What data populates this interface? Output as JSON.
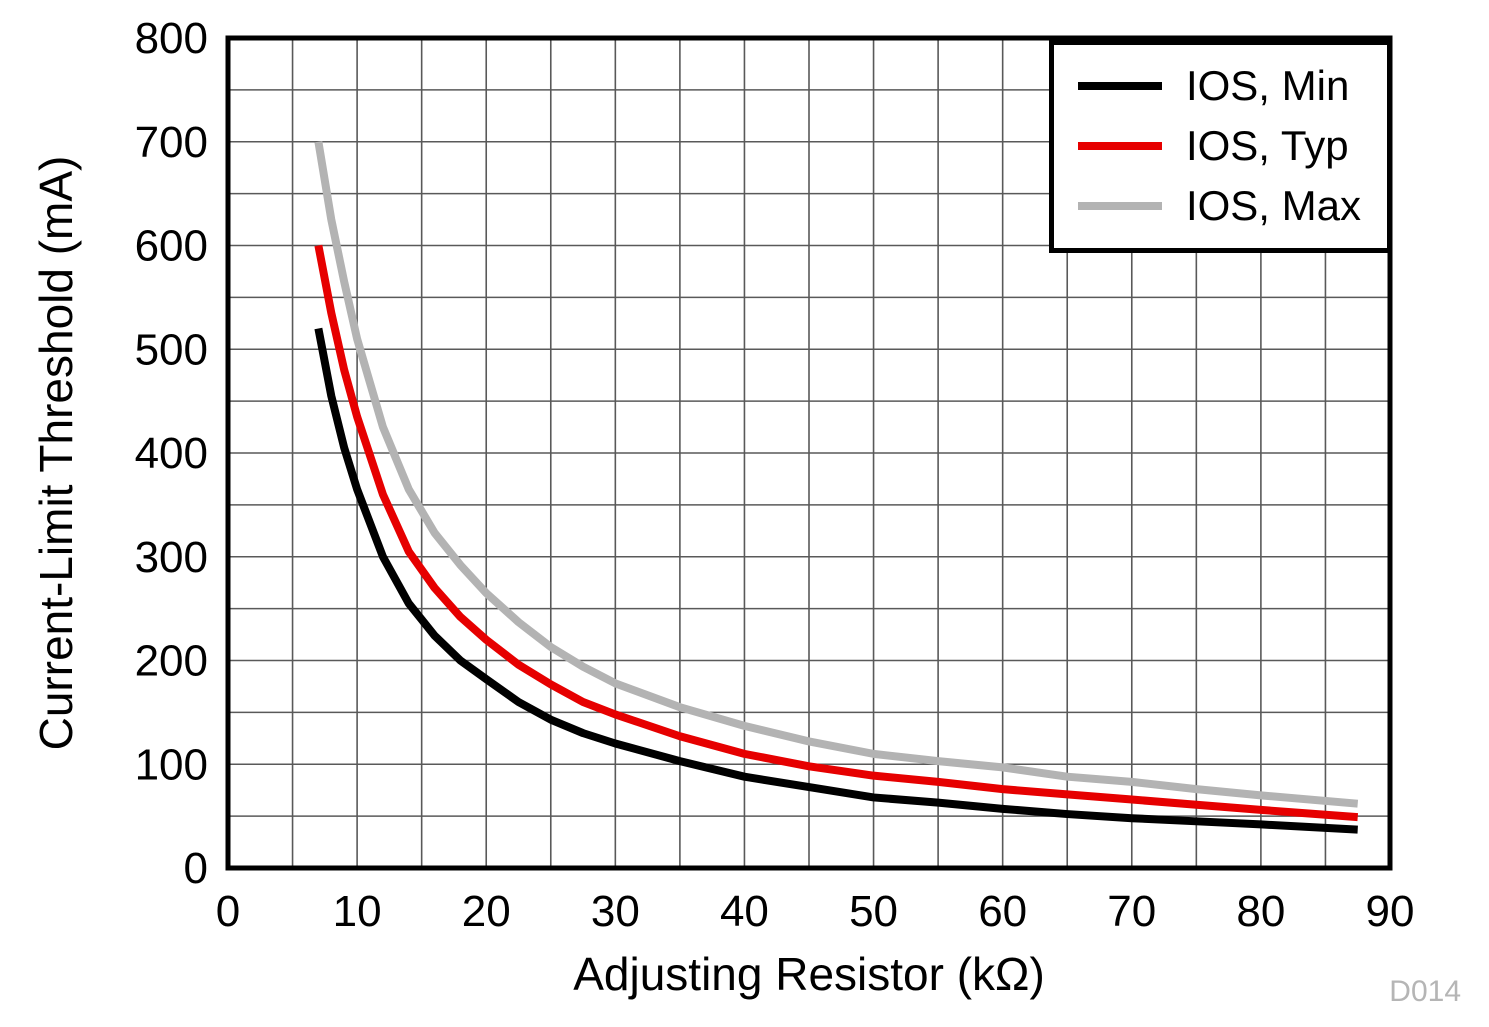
{
  "chart_data": {
    "type": "line",
    "title": "",
    "xlabel": "Adjusting Resistor (kΩ)",
    "ylabel": "Current-Limit Threshold (mA)",
    "xlim": [
      0,
      90
    ],
    "ylim": [
      0,
      800
    ],
    "x_ticks": [
      0,
      10,
      20,
      30,
      40,
      50,
      60,
      70,
      80,
      90
    ],
    "y_ticks": [
      0,
      100,
      200,
      300,
      400,
      500,
      600,
      700,
      800
    ],
    "x_minor_step": 5,
    "y_minor_step": 50,
    "grid": "on",
    "legend_position": "top-right",
    "x": [
      7,
      8,
      9,
      10,
      12,
      14,
      16,
      18,
      20,
      22.5,
      25,
      27.5,
      30,
      35,
      40,
      45,
      50,
      55,
      60,
      65,
      70,
      75,
      80,
      87.5
    ],
    "series": [
      {
        "name": "IOS, Min",
        "color": "#000000",
        "values": [
          520,
          455,
          405,
          365,
          300,
          255,
          224,
          200,
          182,
          160,
          143,
          130,
          120,
          103,
          88,
          78,
          68,
          63,
          57,
          52,
          48,
          45,
          42,
          37
        ]
      },
      {
        "name": "IOS, Typ",
        "color": "#e60000",
        "values": [
          600,
          535,
          480,
          435,
          360,
          305,
          270,
          242,
          220,
          196,
          177,
          160,
          148,
          127,
          110,
          98,
          89,
          83,
          76,
          71,
          66,
          61,
          56,
          49
        ]
      },
      {
        "name": "IOS, Max",
        "color": "#b3b3b3",
        "values": [
          700,
          625,
          565,
          510,
          425,
          365,
          323,
          292,
          265,
          237,
          213,
          194,
          178,
          155,
          137,
          122,
          110,
          103,
          97,
          88,
          83,
          76,
          70,
          62
        ]
      }
    ],
    "watermark": "D014",
    "grid_color": "#595959",
    "frame_color": "#000000"
  }
}
